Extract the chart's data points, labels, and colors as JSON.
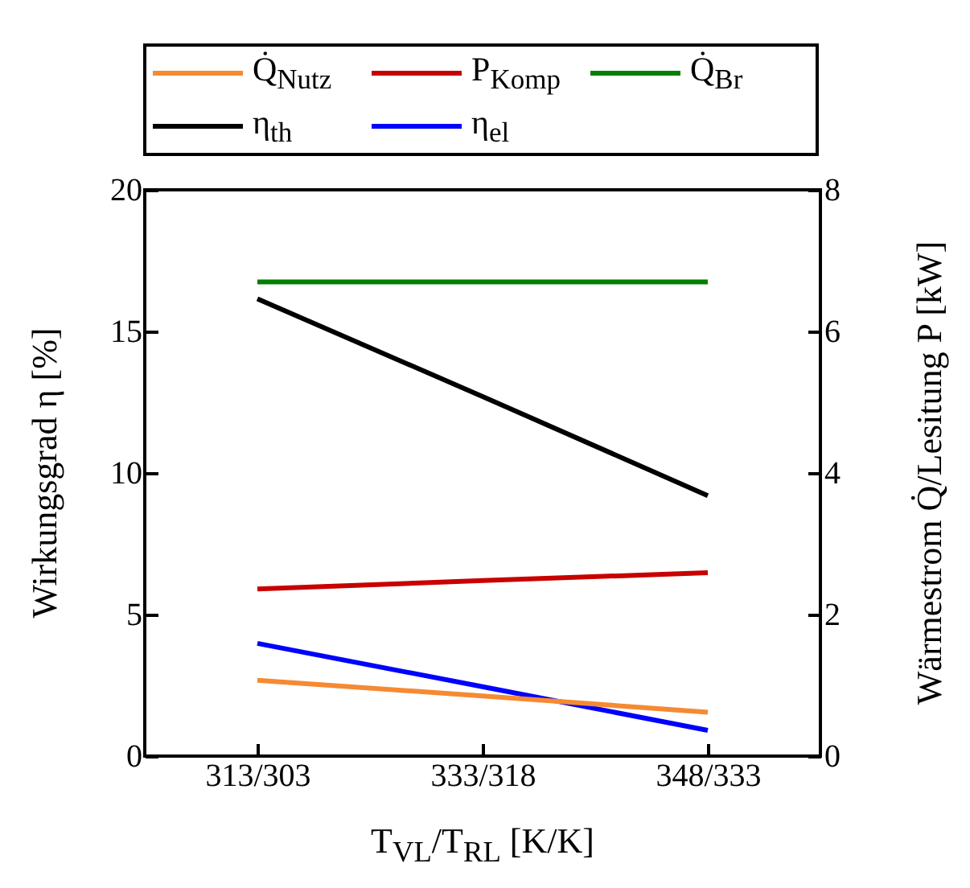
{
  "chart_data": {
    "type": "line",
    "categories": [
      "313/303",
      "333/318",
      "348/333"
    ],
    "xlabel": "T$_{VL}$/T$_{RL}$ [K/K]",
    "ylabel": "Wirkungsgrad  η [%]",
    "y2label": "Wärmestrom  Q̇/Lesitung P [kW]",
    "ylim": [
      0,
      20
    ],
    "yticks": [
      0,
      5,
      10,
      15,
      20
    ],
    "y2lim": [
      0,
      8
    ],
    "y2ticks": [
      0,
      2,
      4,
      6,
      8
    ],
    "legend": "top",
    "grid": false,
    "series": [
      {
        "name": "Q̇$_{Nutz}$",
        "color": "#f58a32",
        "axis": "y2",
        "values": [
          1.07,
          0.85,
          0.62
        ]
      },
      {
        "name": "P$_{Komp}$",
        "color": "#c80000",
        "axis": "y2",
        "values": [
          2.36,
          2.48,
          2.59
        ]
      },
      {
        "name": "Q̇$_{Br}$",
        "color": "#008000",
        "axis": "y2",
        "values": [
          6.7,
          6.7,
          6.7
        ]
      },
      {
        "name": "η$_{th}$",
        "color": "#000000",
        "values": [
          16.15,
          12.7,
          9.2
        ]
      },
      {
        "name": "η$_{el}$",
        "color": "#0000ff",
        "values": [
          3.98,
          2.45,
          0.91
        ]
      }
    ]
  }
}
